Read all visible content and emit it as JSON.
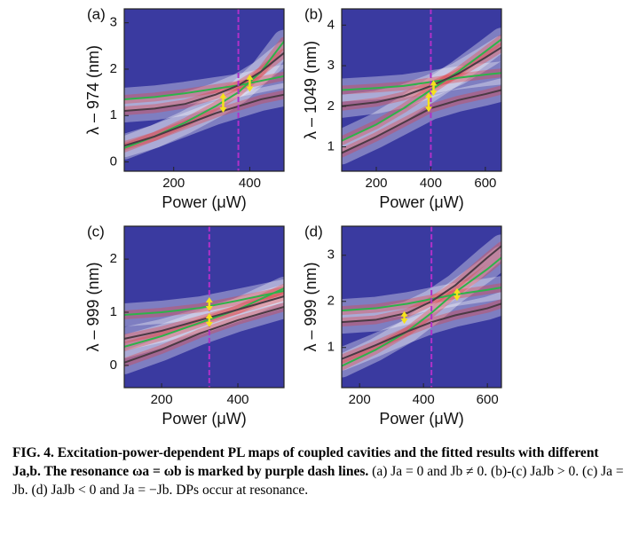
{
  "chart_data": [
    {
      "type": "line",
      "panel_label": "(a)",
      "x_label": "Power (μW)",
      "y_label": "λ – 974 (nm)",
      "xlim": [
        70,
        490
      ],
      "ylim": [
        -0.2,
        3.3
      ],
      "xticks": [
        200,
        400
      ],
      "yticks": [
        0,
        1,
        2,
        3
      ],
      "resonance_x": 370,
      "x": [
        70,
        150,
        230,
        310,
        370,
        430,
        490
      ],
      "series": [
        {
          "color": "#2db34a",
          "values": [
            1.35,
            1.4,
            1.48,
            1.58,
            1.65,
            1.75,
            1.85
          ]
        },
        {
          "color": "#2db34a",
          "values": [
            0.3,
            0.55,
            0.85,
            1.2,
            1.5,
            1.95,
            2.6
          ]
        },
        {
          "color": "#4a3a44",
          "values": [
            1.1,
            1.15,
            1.25,
            1.45,
            1.65,
            1.95,
            2.35
          ]
        },
        {
          "color": "#4a3a44",
          "values": [
            0.35,
            0.55,
            0.8,
            1.05,
            1.2,
            1.35,
            1.45
          ]
        }
      ],
      "arrows": [
        [
          330,
          1.1,
          1.45
        ],
        [
          400,
          1.55,
          1.85
        ]
      ]
    },
    {
      "type": "line",
      "panel_label": "(b)",
      "x_label": "Power (μW)",
      "y_label": "λ – 1049 (nm)",
      "xlim": [
        73,
        659
      ],
      "ylim": [
        0.4,
        4.4
      ],
      "xticks": [
        200,
        400,
        600
      ],
      "yticks": [
        1,
        2,
        3,
        4
      ],
      "resonance_x": 400,
      "x": [
        73,
        200,
        300,
        400,
        500,
        600,
        659
      ],
      "series": [
        {
          "color": "#2db34a",
          "values": [
            2.4,
            2.45,
            2.5,
            2.6,
            2.7,
            2.78,
            2.82
          ]
        },
        {
          "color": "#2db34a",
          "values": [
            1.15,
            1.55,
            1.95,
            2.4,
            2.85,
            3.35,
            3.65
          ]
        },
        {
          "color": "#4a3a44",
          "values": [
            2.0,
            2.1,
            2.25,
            2.5,
            2.8,
            3.2,
            3.45
          ]
        },
        {
          "color": "#4a3a44",
          "values": [
            0.85,
            1.25,
            1.6,
            1.95,
            2.15,
            2.3,
            2.4
          ]
        }
      ],
      "arrows": [
        [
          392,
          1.9,
          2.3
        ],
        [
          410,
          2.3,
          2.6
        ]
      ]
    },
    {
      "type": "line",
      "panel_label": "(c)",
      "x_label": "Power (μW)",
      "y_label": "λ – 999 (nm)",
      "xlim": [
        102,
        521
      ],
      "ylim": [
        -0.42,
        2.62
      ],
      "xticks": [
        200,
        400
      ],
      "yticks": [
        0,
        1,
        2
      ],
      "resonance_x": 325,
      "x": [
        102,
        200,
        300,
        400,
        521
      ],
      "series": [
        {
          "color": "#2db34a",
          "values": [
            0.95,
            1.0,
            1.08,
            1.22,
            1.4
          ]
        },
        {
          "color": "#2db34a",
          "values": [
            0.35,
            0.55,
            0.8,
            1.05,
            1.45
          ]
        },
        {
          "color": "#4a3a44",
          "values": [
            0.5,
            0.65,
            0.85,
            1.05,
            1.3
          ]
        },
        {
          "color": "#4a3a44",
          "values": [
            0.05,
            0.3,
            0.6,
            0.85,
            1.1
          ]
        }
      ],
      "arrows": [
        [
          325,
          1.05,
          1.25
        ],
        [
          325,
          0.75,
          0.95
        ]
      ]
    },
    {
      "type": "line",
      "panel_label": "(d)",
      "x_label": "Power (μW)",
      "y_label": "λ – 999 (nm)",
      "xlim": [
        144,
        644
      ],
      "ylim": [
        0.13,
        3.63
      ],
      "xticks": [
        200,
        400,
        600
      ],
      "yticks": [
        1,
        2,
        3
      ],
      "resonance_x": 425,
      "x": [
        144,
        250,
        350,
        425,
        500,
        600,
        644
      ],
      "series": [
        {
          "color": "#2db34a",
          "values": [
            1.8,
            1.85,
            1.95,
            2.05,
            2.15,
            2.25,
            2.3
          ]
        },
        {
          "color": "#2db34a",
          "values": [
            0.6,
            0.95,
            1.35,
            1.75,
            2.2,
            2.7,
            2.95
          ]
        },
        {
          "color": "#4a3a44",
          "values": [
            1.55,
            1.6,
            1.75,
            2.0,
            2.35,
            2.95,
            3.2
          ]
        },
        {
          "color": "#4a3a44",
          "values": [
            0.75,
            1.05,
            1.35,
            1.55,
            1.7,
            1.85,
            1.95
          ]
        }
      ],
      "arrows": [
        [
          340,
          1.55,
          1.75
        ],
        [
          505,
          2.05,
          2.25
        ]
      ]
    }
  ],
  "caption": {
    "bold": "FIG. 4. Excitation-power-dependent PL maps of coupled cavities and the fitted results with different Ja,b. The resonance ωa = ωb is marked by purple dash lines.",
    "text": "(a) Ja = 0 and Jb ≠ 0. (b)-(c) JaJb > 0. (c) Ja = Jb. (d) JaJb < 0 and Ja = −Jb. DPs occur at resonance."
  }
}
